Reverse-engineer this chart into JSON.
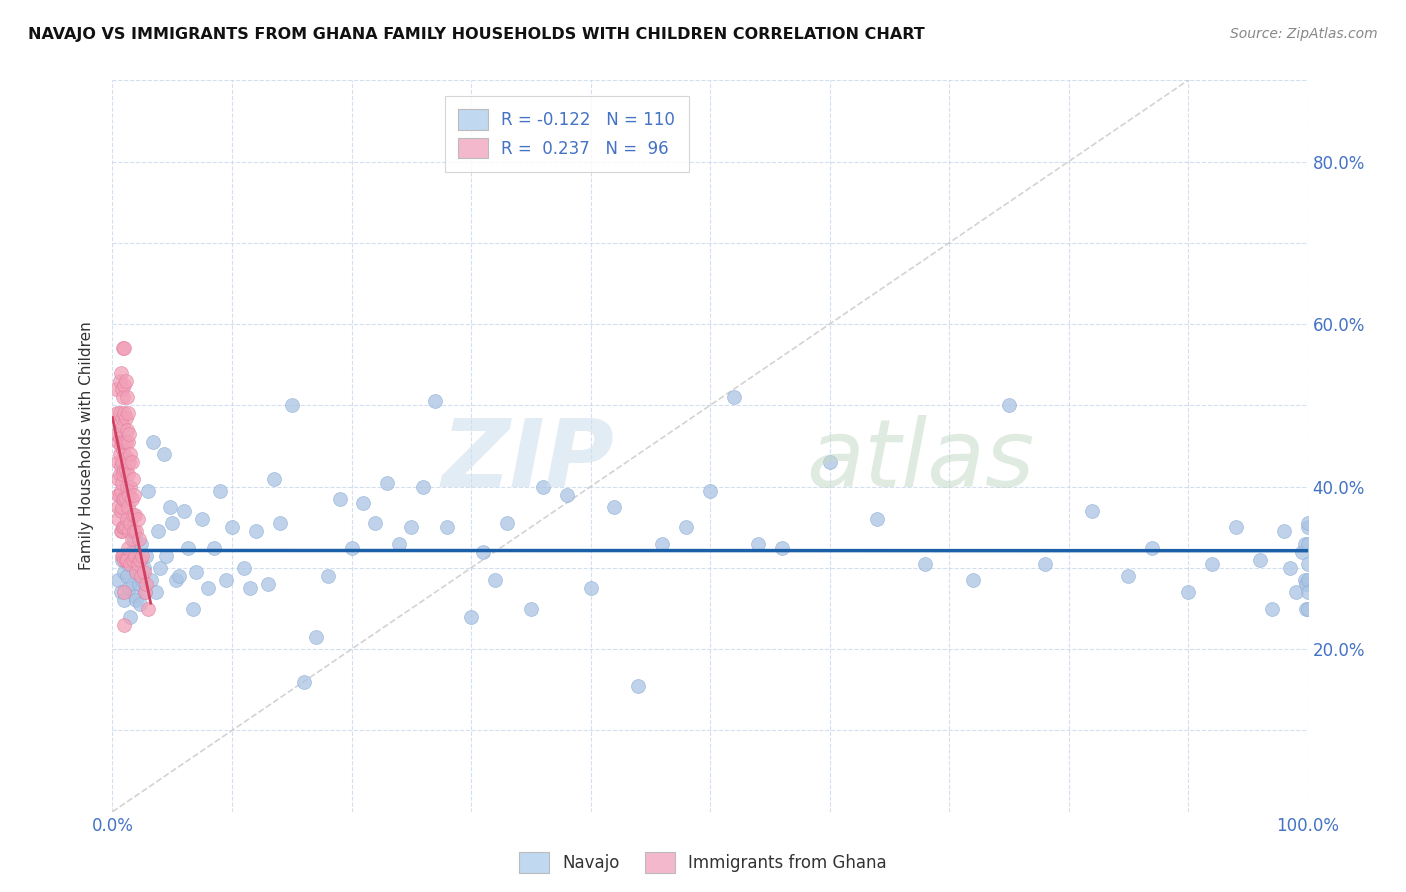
{
  "title": "NAVAJO VS IMMIGRANTS FROM GHANA FAMILY HOUSEHOLDS WITH CHILDREN CORRELATION CHART",
  "source": "Source: ZipAtlas.com",
  "ylabel": "Family Households with Children",
  "navajo_R": -0.122,
  "navajo_N": 110,
  "ghana_R": 0.237,
  "ghana_N": 96,
  "navajo_color": "#aac4e4",
  "ghana_color": "#f2a0b8",
  "navajo_edge_color": "#88aad4",
  "ghana_edge_color": "#e080a0",
  "navajo_line_color": "#1a5fa8",
  "ghana_line_color": "#d04060",
  "diagonal_color": "#c8c8c8",
  "legend_box_navajo": "#c0d8f0",
  "legend_box_ghana": "#f4b8cc",
  "watermark_zip_color": "#c8dff0",
  "watermark_atlas_color": "#c8ddd0",
  "ytick_color": "#4472c4",
  "xtick_color": "#4472c4",
  "navajo_scatter_x": [
    0.005,
    0.007,
    0.008,
    0.01,
    0.01,
    0.012,
    0.013,
    0.014,
    0.015,
    0.016,
    0.017,
    0.018,
    0.019,
    0.02,
    0.02,
    0.021,
    0.022,
    0.023,
    0.024,
    0.025,
    0.026,
    0.027,
    0.028,
    0.03,
    0.032,
    0.034,
    0.036,
    0.038,
    0.04,
    0.043,
    0.045,
    0.048,
    0.05,
    0.053,
    0.056,
    0.06,
    0.063,
    0.067,
    0.07,
    0.075,
    0.08,
    0.085,
    0.09,
    0.095,
    0.1,
    0.11,
    0.115,
    0.12,
    0.13,
    0.135,
    0.14,
    0.15,
    0.16,
    0.17,
    0.18,
    0.19,
    0.2,
    0.21,
    0.22,
    0.23,
    0.24,
    0.25,
    0.26,
    0.27,
    0.28,
    0.3,
    0.31,
    0.32,
    0.33,
    0.35,
    0.36,
    0.38,
    0.4,
    0.42,
    0.44,
    0.46,
    0.48,
    0.5,
    0.52,
    0.54,
    0.56,
    0.6,
    0.64,
    0.68,
    0.72,
    0.75,
    0.78,
    0.82,
    0.85,
    0.87,
    0.9,
    0.92,
    0.94,
    0.96,
    0.97,
    0.98,
    0.985,
    0.99,
    0.995,
    0.998,
    0.998,
    0.999,
    0.999,
    1.0,
    1.0,
    1.0,
    1.0,
    1.0,
    1.0,
    1.0
  ],
  "navajo_scatter_y": [
    0.285,
    0.27,
    0.31,
    0.295,
    0.26,
    0.29,
    0.305,
    0.275,
    0.24,
    0.32,
    0.28,
    0.335,
    0.265,
    0.295,
    0.26,
    0.31,
    0.28,
    0.255,
    0.33,
    0.285,
    0.3,
    0.27,
    0.315,
    0.395,
    0.285,
    0.455,
    0.27,
    0.345,
    0.3,
    0.44,
    0.315,
    0.375,
    0.355,
    0.285,
    0.29,
    0.37,
    0.325,
    0.25,
    0.295,
    0.36,
    0.275,
    0.325,
    0.395,
    0.285,
    0.35,
    0.3,
    0.275,
    0.345,
    0.28,
    0.41,
    0.355,
    0.5,
    0.16,
    0.215,
    0.29,
    0.385,
    0.325,
    0.38,
    0.355,
    0.405,
    0.33,
    0.35,
    0.4,
    0.505,
    0.35,
    0.24,
    0.32,
    0.285,
    0.355,
    0.25,
    0.4,
    0.39,
    0.275,
    0.375,
    0.155,
    0.33,
    0.35,
    0.395,
    0.51,
    0.33,
    0.325,
    0.43,
    0.36,
    0.305,
    0.285,
    0.5,
    0.305,
    0.37,
    0.29,
    0.325,
    0.27,
    0.305,
    0.35,
    0.31,
    0.25,
    0.345,
    0.3,
    0.27,
    0.32,
    0.285,
    0.33,
    0.28,
    0.25,
    0.285,
    0.33,
    0.25,
    0.305,
    0.35,
    0.27,
    0.355
  ],
  "ghana_scatter_x": [
    0.003,
    0.004,
    0.004,
    0.005,
    0.005,
    0.005,
    0.005,
    0.005,
    0.005,
    0.006,
    0.006,
    0.006,
    0.006,
    0.006,
    0.006,
    0.007,
    0.007,
    0.007,
    0.007,
    0.007,
    0.007,
    0.007,
    0.008,
    0.008,
    0.008,
    0.008,
    0.008,
    0.008,
    0.008,
    0.008,
    0.009,
    0.009,
    0.009,
    0.009,
    0.009,
    0.009,
    0.009,
    0.009,
    0.01,
    0.01,
    0.01,
    0.01,
    0.01,
    0.01,
    0.01,
    0.01,
    0.01,
    0.01,
    0.011,
    0.011,
    0.011,
    0.011,
    0.011,
    0.011,
    0.011,
    0.012,
    0.012,
    0.012,
    0.012,
    0.012,
    0.012,
    0.013,
    0.013,
    0.013,
    0.013,
    0.013,
    0.014,
    0.014,
    0.014,
    0.014,
    0.015,
    0.015,
    0.015,
    0.015,
    0.016,
    0.016,
    0.016,
    0.017,
    0.017,
    0.017,
    0.018,
    0.018,
    0.019,
    0.019,
    0.02,
    0.02,
    0.021,
    0.021,
    0.022,
    0.023,
    0.024,
    0.025,
    0.026,
    0.027,
    0.028,
    0.03
  ],
  "ghana_scatter_y": [
    0.52,
    0.49,
    0.465,
    0.455,
    0.43,
    0.41,
    0.39,
    0.375,
    0.36,
    0.53,
    0.49,
    0.46,
    0.44,
    0.415,
    0.39,
    0.54,
    0.48,
    0.45,
    0.425,
    0.395,
    0.37,
    0.345,
    0.52,
    0.485,
    0.455,
    0.43,
    0.405,
    0.375,
    0.345,
    0.315,
    0.57,
    0.51,
    0.475,
    0.445,
    0.415,
    0.385,
    0.35,
    0.315,
    0.57,
    0.525,
    0.49,
    0.455,
    0.42,
    0.385,
    0.35,
    0.31,
    0.27,
    0.23,
    0.53,
    0.485,
    0.455,
    0.42,
    0.385,
    0.35,
    0.31,
    0.51,
    0.47,
    0.435,
    0.4,
    0.36,
    0.31,
    0.49,
    0.455,
    0.415,
    0.375,
    0.325,
    0.465,
    0.43,
    0.39,
    0.345,
    0.44,
    0.4,
    0.355,
    0.305,
    0.43,
    0.385,
    0.335,
    0.41,
    0.365,
    0.31,
    0.39,
    0.345,
    0.365,
    0.315,
    0.345,
    0.295,
    0.36,
    0.305,
    0.335,
    0.31,
    0.29,
    0.315,
    0.295,
    0.27,
    0.28,
    0.25
  ]
}
